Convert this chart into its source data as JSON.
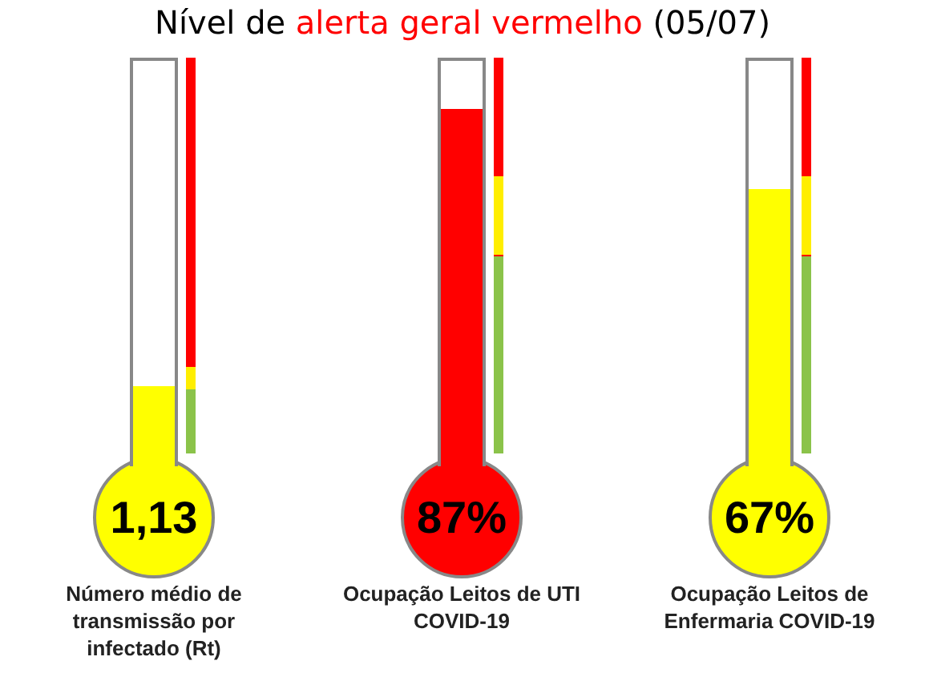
{
  "chart_data": [
    {
      "type": "other",
      "title": "Nível de alerta geral vermelho (05/07)",
      "categories": [
        "Número médio de transmissão por infectado  (Rt)"
      ],
      "values": [
        1.13
      ],
      "value_labels": [
        "1,13"
      ],
      "colors": [
        "#ffff00"
      ]
    },
    {
      "type": "other",
      "categories": [
        "Ocupação Leitos de UTI COVID-19"
      ],
      "values": [
        87
      ],
      "value_labels": [
        "87%"
      ],
      "colors": [
        "#ff0000"
      ]
    },
    {
      "type": "other",
      "categories": [
        "Ocupação Leitos de Enfermaria COVID-19"
      ],
      "values": [
        67
      ],
      "value_labels": [
        "67%"
      ],
      "colors": [
        "#ffff00"
      ]
    }
  ]
}
